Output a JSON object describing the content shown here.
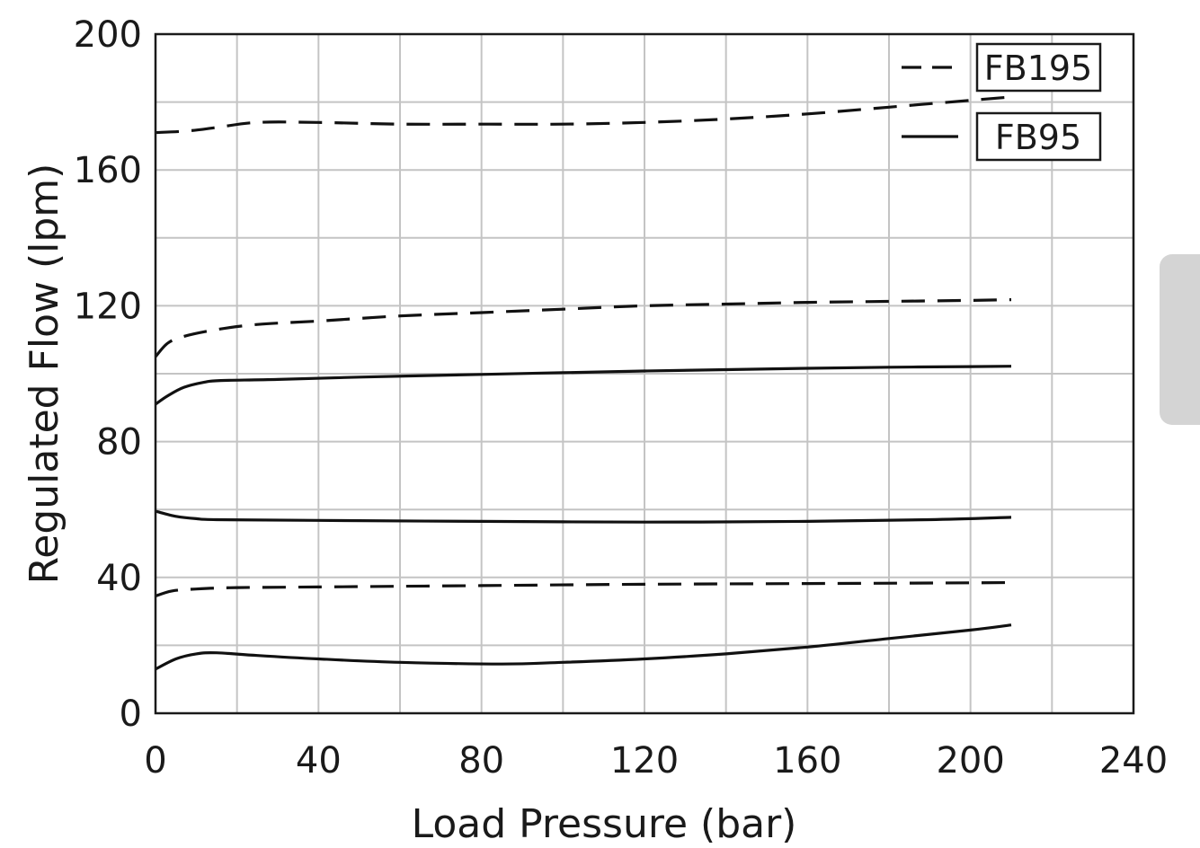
{
  "chart_data": {
    "type": "line",
    "xlabel": "Load Pressure (bar)",
    "ylabel": "Regulated Flow (lpm)",
    "xlim": [
      0,
      240
    ],
    "ylim": [
      0,
      200
    ],
    "xticks": [
      0,
      40,
      80,
      120,
      160,
      200,
      240
    ],
    "yticks": [
      0,
      40,
      80,
      120,
      160,
      200
    ],
    "grid": true,
    "minor_grid_step": {
      "x": 20,
      "y": 20
    },
    "legend": {
      "placement": "top-right",
      "entries": [
        {
          "label": "FB195",
          "style": "dashed"
        },
        {
          "label": "FB95",
          "style": "solid"
        }
      ]
    },
    "series": [
      {
        "name": "FB195",
        "style": "dashed",
        "points": [
          [
            0,
            171
          ],
          [
            8,
            171.5
          ],
          [
            15,
            172.5
          ],
          [
            25,
            174
          ],
          [
            40,
            174
          ],
          [
            60,
            173.5
          ],
          [
            80,
            173.5
          ],
          [
            100,
            173.5
          ],
          [
            120,
            174
          ],
          [
            140,
            175
          ],
          [
            160,
            176.5
          ],
          [
            180,
            178.5
          ],
          [
            200,
            180.5
          ],
          [
            210,
            181.5
          ]
        ]
      },
      {
        "name": "FB195",
        "style": "dashed",
        "points": [
          [
            0,
            105
          ],
          [
            3,
            109
          ],
          [
            7,
            111
          ],
          [
            15,
            113
          ],
          [
            25,
            114.5
          ],
          [
            40,
            115.5
          ],
          [
            60,
            117
          ],
          [
            80,
            118
          ],
          [
            100,
            119
          ],
          [
            120,
            120
          ],
          [
            140,
            120.5
          ],
          [
            160,
            121
          ],
          [
            180,
            121.3
          ],
          [
            200,
            121.6
          ],
          [
            210,
            121.8
          ]
        ]
      },
      {
        "name": "FB195",
        "style": "dashed",
        "points": [
          [
            0,
            34.5
          ],
          [
            4,
            36
          ],
          [
            10,
            36.6
          ],
          [
            20,
            37
          ],
          [
            40,
            37.2
          ],
          [
            80,
            37.6
          ],
          [
            120,
            38
          ],
          [
            160,
            38.2
          ],
          [
            200,
            38.4
          ],
          [
            210,
            38.5
          ]
        ]
      },
      {
        "name": "FB95",
        "style": "solid",
        "points": [
          [
            0,
            91
          ],
          [
            3,
            93.5
          ],
          [
            7,
            96
          ],
          [
            12,
            97.5
          ],
          [
            16,
            98
          ],
          [
            30,
            98.3
          ],
          [
            50,
            99
          ],
          [
            80,
            99.8
          ],
          [
            100,
            100.3
          ],
          [
            120,
            100.8
          ],
          [
            140,
            101.2
          ],
          [
            160,
            101.6
          ],
          [
            180,
            101.9
          ],
          [
            200,
            102.1
          ],
          [
            210,
            102.2
          ]
        ]
      },
      {
        "name": "FB95",
        "style": "solid",
        "points": [
          [
            0,
            59.5
          ],
          [
            5,
            58
          ],
          [
            10,
            57.3
          ],
          [
            15,
            57
          ],
          [
            40,
            56.8
          ],
          [
            80,
            56.5
          ],
          [
            120,
            56.3
          ],
          [
            160,
            56.5
          ],
          [
            190,
            57
          ],
          [
            210,
            57.7
          ]
        ]
      },
      {
        "name": "FB95",
        "style": "solid",
        "points": [
          [
            0,
            13
          ],
          [
            5,
            16
          ],
          [
            10,
            17.5
          ],
          [
            15,
            17.8
          ],
          [
            25,
            17
          ],
          [
            40,
            16
          ],
          [
            60,
            15
          ],
          [
            85,
            14.5
          ],
          [
            100,
            15
          ],
          [
            120,
            16
          ],
          [
            140,
            17.5
          ],
          [
            160,
            19.5
          ],
          [
            180,
            22
          ],
          [
            200,
            24.5
          ],
          [
            210,
            26
          ]
        ]
      }
    ]
  }
}
